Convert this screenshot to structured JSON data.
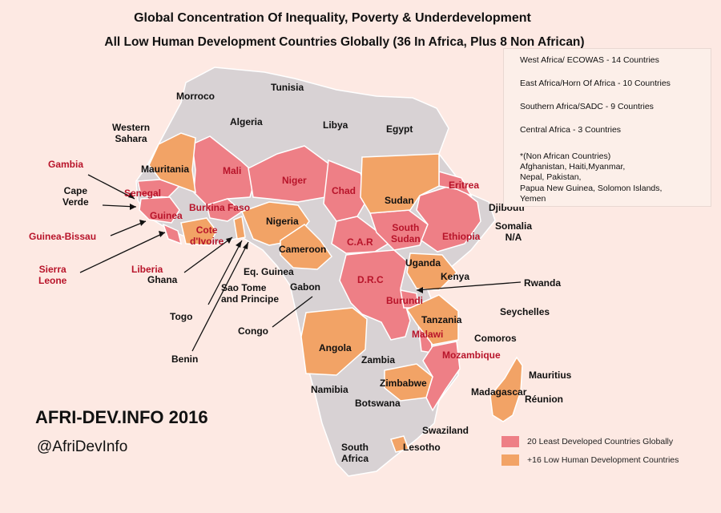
{
  "title": "Global Concentration Of Inequality, Poverty & Underdevelopment",
  "subtitle": "All Low Human Development Countries Globally (36 In Africa, Plus 8 Non African)",
  "colors": {
    "background": "#fde9e3",
    "other_country": "#d8d2d4",
    "least_developed": "#ee7f86",
    "low_hdi": "#f2a366",
    "border": "#ffffff",
    "label_red": "#b8142a"
  },
  "info": {
    "regions": [
      "West Africa/ ECOWAS - 14 Countries",
      "East Africa/Horn Of Africa - 10 Countries",
      "Southern Africa/SADC - 9 Countries",
      "Central Africa - 3 Countries"
    ],
    "non_african_note": [
      "*(Non African Countries)",
      "Afghanistan, Haiti,Myanmar,",
      "Nepal, Pakistan,",
      "Papua New Guinea, Solomon Islands,",
      "Yemen"
    ]
  },
  "brand": "AFRI-DEV.INFO 2016",
  "handle": "@AfriDevInfo",
  "legend": [
    {
      "label": "20 Least Developed Countries Globally",
      "color": "#ee7f86"
    },
    {
      "label": "+16 Low Human Development Countries",
      "color": "#f2a366"
    }
  ],
  "countries": {
    "morroco": "Morroco",
    "tunisia": "Tunisia",
    "algeria": "Algeria",
    "libya": "Libya",
    "egypt": "Egypt",
    "western_sahara": [
      "Western",
      "Sahara"
    ],
    "mauritania": "Mauritania",
    "mali": "Mali",
    "niger": "Niger",
    "chad": "Chad",
    "sudan": "Sudan",
    "eritrea": "Eritrea",
    "djibouti": "Djibouti",
    "somalia": [
      "Somalia",
      "N/A"
    ],
    "gambia": "Gambia",
    "cape_verde": [
      "Cape",
      "Verde"
    ],
    "senegal": "Senegal",
    "guinea": "Guinea",
    "burkina_faso": "Burkina Faso",
    "nigeria": "Nigeria",
    "south_sudan": [
      "South",
      "Sudan"
    ],
    "ethiopia": "Ethiopia",
    "guinea_bissau": "Guinea-Bissau",
    "cote_divoire": [
      "Cote",
      "d'Ivoire"
    ],
    "car": "C.A.R",
    "sierra_leone": [
      "Sierra",
      "Leone"
    ],
    "liberia": "Liberia",
    "ghana": "Ghana",
    "cameroon": "Cameroon",
    "eq_guinea": "Eq. Guinea",
    "uganda": "Uganda",
    "sao_tome": [
      "Sao Tome",
      "and Principe"
    ],
    "gabon": "Gabon",
    "drc": "D.R.C",
    "kenya": "Kenya",
    "rwanda": "Rwanda",
    "burundi": "Burundi",
    "togo": "Togo",
    "seychelles": "Seychelles",
    "congo": "Congo",
    "tanzania": "Tanzania",
    "malawi": "Malawi",
    "comoros": "Comoros",
    "angola": "Angola",
    "zambia": "Zambia",
    "benin": "Benin",
    "mozambique": "Mozambique",
    "mauritius": "Mauritius",
    "zimbabwe": "Zimbabwe",
    "madagascar": "Madagascar",
    "reunion": "Réunion",
    "namibia": "Namibia",
    "botswana": "Botswana",
    "swaziland": "Swaziland",
    "lesotho": "Lesotho",
    "south_africa": [
      "South",
      "Africa"
    ]
  }
}
